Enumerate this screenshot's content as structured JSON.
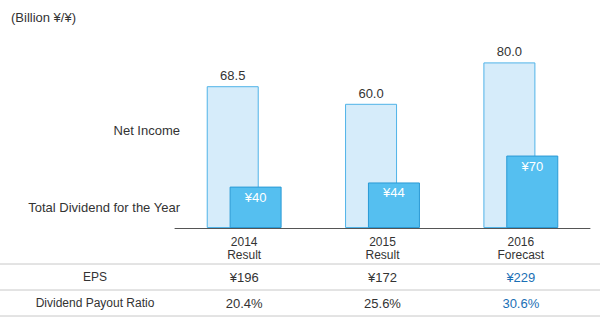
{
  "chart_data": {
    "type": "bar",
    "title": "(Billion ¥/¥)",
    "categories": [
      "2014\nResult",
      "2015\nResult",
      "2016\nForecast"
    ],
    "series": [
      {
        "name": "Net Income",
        "color": "#d6ecfa",
        "values": [
          68.5,
          60.0,
          80.0
        ],
        "value_labels": [
          "68.5",
          "60.0",
          "80.0"
        ],
        "axis": "y"
      },
      {
        "name": "Total Dividend for the Year",
        "color": "#55bff0",
        "values": [
          40,
          44,
          70
        ],
        "value_labels": [
          "¥40",
          "¥44",
          "¥70"
        ],
        "axis": "y2"
      }
    ],
    "ylim": [
      0,
      100
    ],
    "yticks": [
      0,
      100
    ],
    "y2lim": [
      0,
      200
    ],
    "y2ticks": [
      0,
      200
    ],
    "grid": false,
    "data_labels": true,
    "tick_labels": "x"
  },
  "table": {
    "rows": [
      {
        "label": "EPS",
        "cells": [
          "¥196",
          "¥172",
          "¥229"
        ]
      },
      {
        "label": "Dividend Payout Ratio",
        "cells": [
          "20.4%",
          "25.6%",
          "30.6%"
        ]
      }
    ],
    "colors": [
      "#333333",
      "#333333",
      "#1a6fb5"
    ]
  }
}
